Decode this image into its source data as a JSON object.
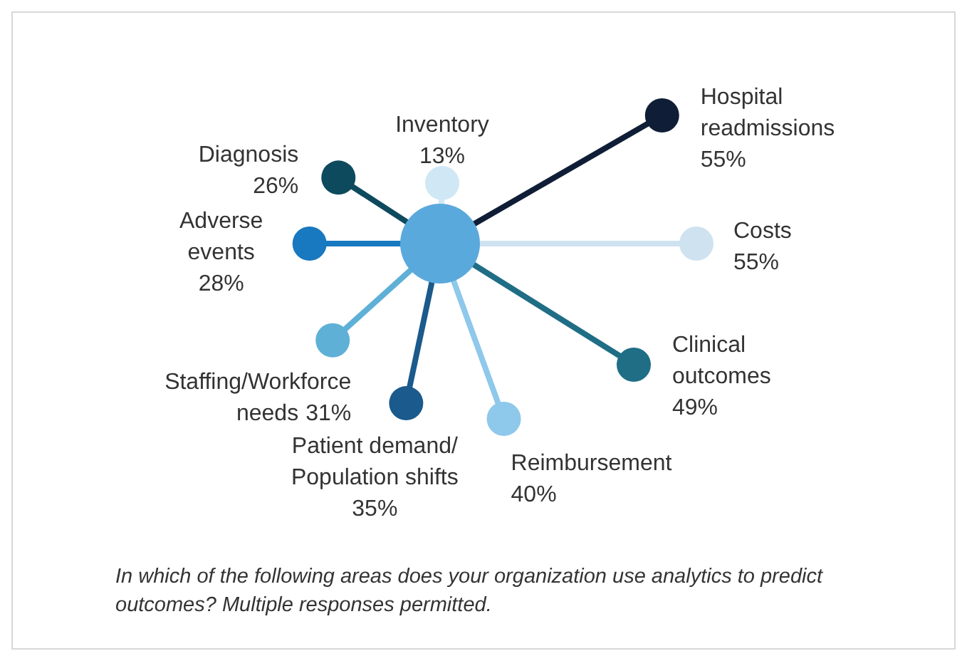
{
  "chart_data": {
    "type": "other",
    "categories": [
      "Inventory",
      "Hospital readmissions",
      "Costs",
      "Clinical outcomes",
      "Reimbursement",
      "Patient demand/ Population shifts",
      "Staffing/Workforce needs",
      "Adverse events",
      "Diagnosis"
    ],
    "values": [
      13,
      55,
      55,
      49,
      40,
      35,
      31,
      28,
      26
    ],
    "value_labels": [
      "13%",
      "55%",
      "55%",
      "49%",
      "40%",
      "35%",
      "31%",
      "28%",
      "26%"
    ],
    "colors": [
      "#d0e8f5",
      "#0f1e36",
      "#cfe2f0",
      "#1f6e86",
      "#8ec8eb",
      "#1b5a8c",
      "#5eb0d6",
      "#1878c0",
      "#0e4a5e"
    ],
    "annotations": [
      "In which of the following areas does your organization use analytics to predict outcomes? Multiple responses permitted."
    ]
  }
}
